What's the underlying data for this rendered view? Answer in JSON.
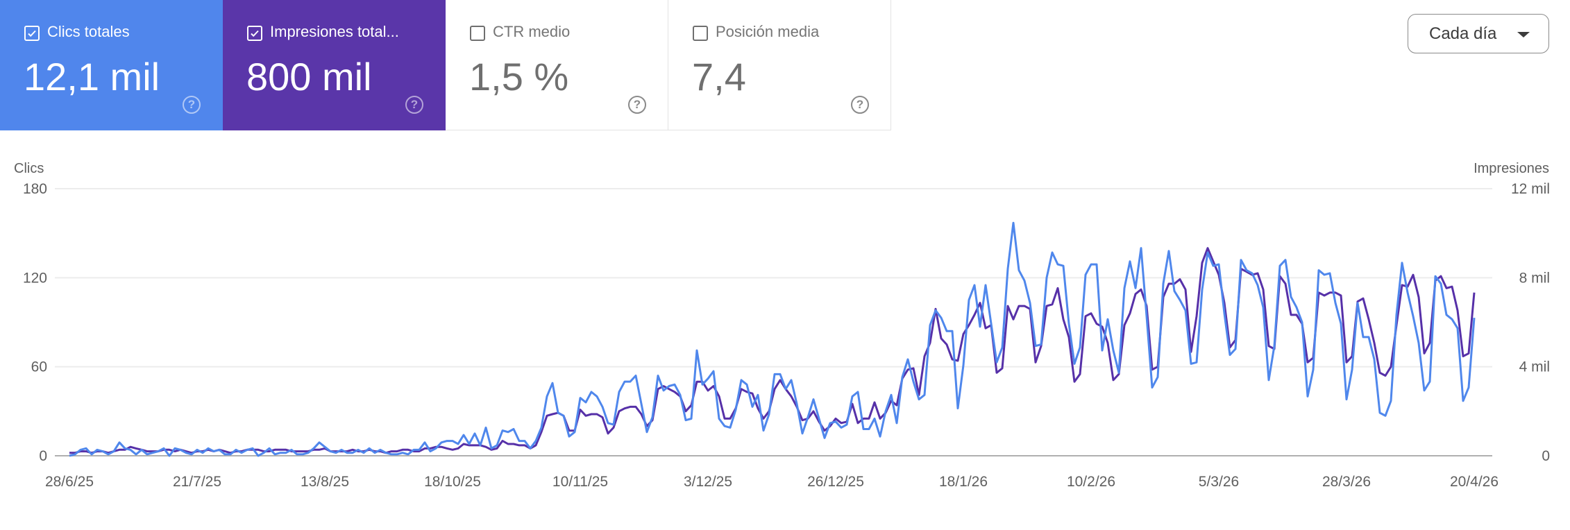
{
  "metrics": [
    {
      "label": "Clics totales",
      "value": "12,1 mil",
      "checked": true,
      "color": "#5086ec"
    },
    {
      "label": "Impresiones total...",
      "value": "800 mil",
      "checked": true,
      "color": "#5a36a9"
    },
    {
      "label": "CTR medio",
      "value": "1,5 %",
      "checked": false
    },
    {
      "label": "Posición media",
      "value": "7,4",
      "checked": false
    }
  ],
  "help_glyph": "?",
  "granularity_dropdown": {
    "selected": "Cada día",
    "icon": "caret-down-icon"
  },
  "chart_data": {
    "type": "line",
    "grid": true,
    "legend": "none",
    "left_axis": {
      "title": "Clics",
      "ticks": [
        "0",
        "60",
        "120",
        "180"
      ],
      "ylim": [
        0,
        180
      ]
    },
    "right_axis": {
      "title": "Impresiones",
      "ticks": [
        "0",
        "4 mil",
        "8 mil",
        "12 mil"
      ],
      "ylim": [
        0,
        12000
      ]
    },
    "x_tick_labels": [
      "28/6/25",
      "21/7/25",
      "13/8/25",
      "18/10/25",
      "10/11/25",
      "3/12/25",
      "26/12/25",
      "18/1/26",
      "10/2/26",
      "5/3/26",
      "28/3/26",
      "20/4/26"
    ],
    "series": [
      {
        "axis": "left",
        "color": "#4f87ec",
        "values": [
          0,
          1,
          4,
          5,
          1,
          4,
          3,
          1,
          3,
          9,
          5,
          4,
          1,
          4,
          1,
          2,
          3,
          5,
          0,
          5,
          4,
          2,
          1,
          4,
          2,
          5,
          3,
          4,
          1,
          1,
          4,
          2,
          4,
          5,
          0,
          2,
          5,
          1,
          2,
          2,
          4,
          1,
          1,
          2,
          5,
          9,
          6,
          3,
          2,
          4,
          2,
          2,
          4,
          2,
          5,
          2,
          4,
          2,
          1,
          1,
          2,
          1,
          4,
          4,
          9,
          3,
          5,
          9,
          10,
          10,
          8,
          14,
          8,
          15,
          7,
          19,
          5,
          7,
          17,
          16,
          18,
          10,
          10,
          5,
          10,
          19,
          40,
          49,
          29,
          27,
          13,
          16,
          39,
          36,
          43,
          40,
          33,
          22,
          21,
          43,
          50,
          50,
          54,
          35,
          16,
          26,
          54,
          44,
          47,
          48,
          41,
          24,
          25,
          71,
          48,
          52,
          57,
          25,
          20,
          19,
          31,
          51,
          48,
          33,
          41,
          17,
          28,
          55,
          55,
          45,
          51,
          35,
          15,
          26,
          38,
          25,
          12,
          22,
          23,
          19,
          21,
          40,
          43,
          18,
          18,
          25,
          13,
          30,
          41,
          22,
          53,
          65,
          50,
          38,
          41,
          88,
          98,
          93,
          84,
          84,
          32,
          61,
          105,
          115,
          87,
          115,
          89,
          63,
          73,
          126,
          157,
          125,
          118,
          103,
          74,
          75,
          120,
          137,
          129,
          128,
          89,
          62,
          73,
          122,
          129,
          129,
          71,
          92,
          71,
          56,
          113,
          131,
          113,
          140,
          94,
          46,
          53,
          116,
          138,
          111,
          105,
          98,
          62,
          63,
          112,
          137,
          128,
          129,
          96,
          68,
          72,
          132,
          125,
          123,
          115,
          100,
          51,
          74,
          128,
          132,
          107,
          100,
          90,
          40,
          58,
          125,
          122,
          123,
          103,
          89,
          38,
          58,
          103,
          80,
          80,
          65,
          29,
          27,
          37,
          95,
          130,
          110,
          94,
          76,
          44,
          50,
          121,
          116,
          95,
          92,
          86,
          37,
          46,
          93
        ]
      },
      {
        "axis": "right",
        "color": "#5630a8",
        "values": [
          130,
          130,
          200,
          200,
          130,
          200,
          200,
          130,
          200,
          270,
          270,
          400,
          330,
          270,
          200,
          200,
          200,
          270,
          270,
          200,
          270,
          200,
          130,
          200,
          200,
          270,
          200,
          270,
          200,
          130,
          200,
          200,
          270,
          270,
          270,
          200,
          200,
          270,
          270,
          270,
          200,
          200,
          200,
          200,
          270,
          270,
          330,
          200,
          200,
          200,
          200,
          270,
          200,
          200,
          270,
          200,
          200,
          130,
          200,
          200,
          270,
          270,
          200,
          200,
          330,
          330,
          400,
          400,
          330,
          270,
          330,
          530,
          470,
          470,
          470,
          400,
          270,
          330,
          670,
          530,
          530,
          470,
          470,
          330,
          470,
          1070,
          1800,
          1870,
          1930,
          1800,
          1130,
          1130,
          2070,
          1800,
          1870,
          1870,
          1730,
          1000,
          1270,
          2000,
          2130,
          2200,
          2200,
          1870,
          1330,
          1600,
          3000,
          3130,
          3000,
          2870,
          2670,
          2000,
          2270,
          3330,
          3330,
          2930,
          3130,
          2670,
          1670,
          1670,
          2130,
          3000,
          2870,
          2800,
          2130,
          1670,
          2000,
          3000,
          3400,
          3000,
          2670,
          2200,
          1600,
          1670,
          2000,
          1530,
          1130,
          1330,
          1670,
          1470,
          1530,
          2330,
          1470,
          1670,
          1670,
          2400,
          1670,
          1930,
          2470,
          2270,
          3470,
          3870,
          3930,
          2730,
          4470,
          5070,
          6600,
          5270,
          5000,
          4330,
          4270,
          5470,
          5870,
          6330,
          6870,
          5730,
          5870,
          3730,
          3930,
          6730,
          6130,
          6730,
          6730,
          6600,
          4200,
          4930,
          6730,
          6800,
          7530,
          6130,
          5330,
          3330,
          3670,
          6270,
          6400,
          5930,
          5800,
          5070,
          3400,
          3670,
          5870,
          6400,
          7270,
          7470,
          6730,
          3870,
          4000,
          7130,
          7730,
          7730,
          7930,
          7470,
          4670,
          6270,
          8670,
          9330,
          8730,
          8130,
          6870,
          4870,
          5200,
          8400,
          8270,
          8130,
          8200,
          7470,
          4930,
          4800,
          8070,
          7730,
          6330,
          6330,
          5930,
          4200,
          4400,
          7330,
          7200,
          7330,
          7330,
          7200,
          4200,
          4470,
          6930,
          7070,
          6130,
          5070,
          3730,
          3600,
          4000,
          5870,
          7670,
          7600,
          8130,
          7130,
          4600,
          5070,
          7870,
          8070,
          7530,
          7600,
          6530,
          4470,
          4600,
          7330
        ]
      }
    ]
  }
}
